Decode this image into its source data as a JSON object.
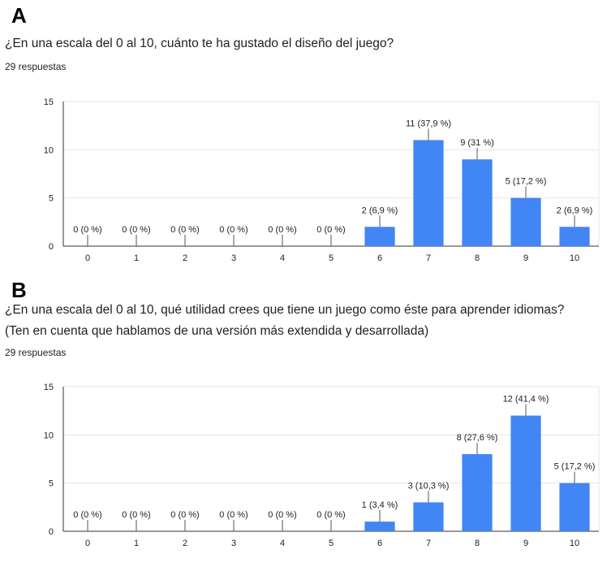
{
  "charts": [
    {
      "letter": "A",
      "question": "¿En una escala del 0 al 10, cuánto te ha gustado el diseño del juego?",
      "responses": "29 respuestas"
    },
    {
      "letter": "B",
      "question": "¿En una escala del 0 al 10, qué utilidad crees que tiene un juego como éste para aprender idiomas? (Ten en cuenta que hablamos de una versión más extendida y desarrollada)",
      "responses": "29 respuestas"
    }
  ],
  "colors": {
    "bar": "#4285f4",
    "grid": "#e6e6e6",
    "axis": "#333333",
    "text": "#202124"
  },
  "chart_data": [
    {
      "type": "bar",
      "categories": [
        "0",
        "1",
        "2",
        "3",
        "4",
        "5",
        "6",
        "7",
        "8",
        "9",
        "10"
      ],
      "values": [
        0,
        0,
        0,
        0,
        0,
        0,
        2,
        11,
        9,
        5,
        2
      ],
      "data_labels": [
        "0 (0 %)",
        "0 (0 %)",
        "0 (0 %)",
        "0 (0 %)",
        "0 (0 %)",
        "0 (0 %)",
        "2 (6,9 %)",
        "11 (37,9 %)",
        "9 (31 %)",
        "5 (17,2 %)",
        "2 (6,9 %)"
      ],
      "yticks": [
        "0",
        "5",
        "10",
        "15"
      ],
      "ylim": [
        0,
        15
      ],
      "grid": true
    },
    {
      "type": "bar",
      "categories": [
        "0",
        "1",
        "2",
        "3",
        "4",
        "5",
        "6",
        "7",
        "8",
        "9",
        "10"
      ],
      "values": [
        0,
        0,
        0,
        0,
        0,
        0,
        1,
        3,
        8,
        12,
        5
      ],
      "data_labels": [
        "0 (0 %)",
        "0 (0 %)",
        "0 (0 %)",
        "0 (0 %)",
        "0 (0 %)",
        "0 (0 %)",
        "1 (3,4 %)",
        "3 (10,3 %)",
        "8 (27,6 %)",
        "12 (41,4 %)",
        "5 (17,2 %)"
      ],
      "yticks": [
        "0",
        "5",
        "10",
        "15"
      ],
      "ylim": [
        0,
        15
      ],
      "grid": true
    }
  ]
}
